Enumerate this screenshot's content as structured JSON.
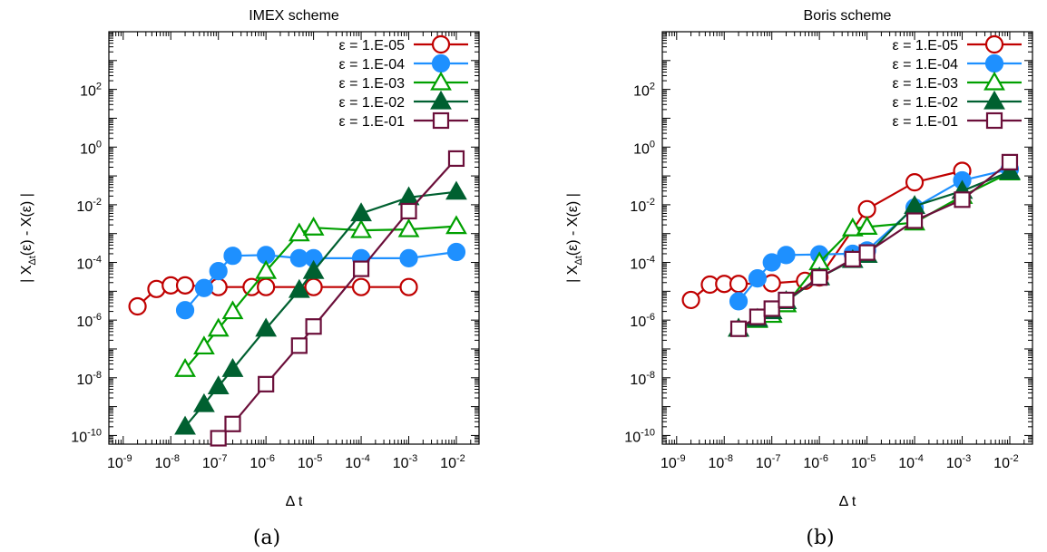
{
  "chart_data": [
    {
      "type": "line",
      "title": "IMEX scheme",
      "caption": "(a)",
      "xlabel": "Δ t",
      "ylabel": "| X",
      "ylabel_sub": "Δt",
      "ylabel_rest": "(ε) - X(ε) |",
      "x_scale": "log",
      "y_scale": "log",
      "xlim": [
        5e-10,
        0.03
      ],
      "ylim": [
        5e-11,
        10000.0
      ],
      "x_ticks": [
        {
          "value": 1e-09,
          "base": "10",
          "exp": "-9"
        },
        {
          "value": 1e-08,
          "base": "10",
          "exp": "-8"
        },
        {
          "value": 1e-07,
          "base": "10",
          "exp": "-7"
        },
        {
          "value": 1e-06,
          "base": "10",
          "exp": "-6"
        },
        {
          "value": 1e-05,
          "base": "10",
          "exp": "-5"
        },
        {
          "value": 0.0001,
          "base": "10",
          "exp": "-4"
        },
        {
          "value": 0.001,
          "base": "10",
          "exp": "-3"
        },
        {
          "value": 0.01,
          "base": "10",
          "exp": "-2"
        }
      ],
      "y_ticks": [
        {
          "value": 1e-10,
          "base": "10",
          "exp": "-10"
        },
        {
          "value": 1e-08,
          "base": "10",
          "exp": "-8"
        },
        {
          "value": 1e-06,
          "base": "10",
          "exp": "-6"
        },
        {
          "value": 0.0001,
          "base": "10",
          "exp": "-4"
        },
        {
          "value": 0.01,
          "base": "10",
          "exp": "-2"
        },
        {
          "value": 1,
          "base": "10",
          "exp": "0"
        },
        {
          "value": 100,
          "base": "10",
          "exp": "2"
        }
      ],
      "legend_position": "top-right",
      "series": [
        {
          "name": "ε = 1.E-05",
          "color": "#c00000",
          "marker": "circle-open",
          "x": [
            2e-09,
            5e-09,
            1e-08,
            2e-08,
            1e-07,
            5e-07,
            1e-06,
            1e-05,
            0.0001,
            0.001
          ],
          "y": [
            3e-06,
            1.2e-05,
            1.6e-05,
            1.6e-05,
            1.4e-05,
            1.4e-05,
            1.4e-05,
            1.4e-05,
            1.4e-05,
            1.4e-05
          ]
        },
        {
          "name": "ε = 1.E-04",
          "color": "#1e90ff",
          "marker": "circle-filled",
          "x": [
            2e-08,
            5e-08,
            1e-07,
            2e-07,
            1e-06,
            5e-06,
            1e-05,
            0.0001,
            0.001,
            0.01
          ],
          "y": [
            2.2e-06,
            1.3e-05,
            5e-05,
            0.00017,
            0.00018,
            0.00014,
            0.00014,
            0.00014,
            0.00014,
            0.00023
          ]
        },
        {
          "name": "ε = 1.E-03",
          "color": "#00a000",
          "marker": "triangle-open",
          "x": [
            2e-08,
            5e-08,
            1e-07,
            2e-07,
            1e-06,
            5e-06,
            1e-05,
            0.0001,
            0.001,
            0.01
          ],
          "y": [
            2e-08,
            1.2e-07,
            5e-07,
            2e-06,
            5e-05,
            0.001,
            0.0016,
            0.0013,
            0.0014,
            0.0018
          ]
        },
        {
          "name": "ε = 1.E-02",
          "color": "#006030",
          "marker": "triangle-filled",
          "x": [
            2e-08,
            5e-08,
            1e-07,
            2e-07,
            1e-06,
            5e-06,
            1e-05,
            0.0001,
            0.001,
            0.01
          ],
          "y": [
            2e-10,
            1.2e-09,
            5e-09,
            2e-08,
            5e-07,
            1.1e-05,
            5e-05,
            0.005,
            0.018,
            0.028
          ]
        },
        {
          "name": "ε = 1.E-01",
          "color": "#6b0f3a",
          "marker": "square-open",
          "x": [
            1e-07,
            2e-07,
            1e-06,
            5e-06,
            1e-05,
            0.0001,
            0.001,
            0.01
          ],
          "y": [
            8e-11,
            2.5e-10,
            6e-09,
            1.3e-07,
            6e-07,
            6e-05,
            0.006,
            0.4
          ]
        }
      ]
    },
    {
      "type": "line",
      "title": "Boris scheme",
      "caption": "(b)",
      "xlabel": "Δ t",
      "ylabel": "| X",
      "ylabel_sub": "Δt",
      "ylabel_rest": "(ε) - X(ε) |",
      "x_scale": "log",
      "y_scale": "log",
      "xlim": [
        5e-10,
        0.03
      ],
      "ylim": [
        5e-11,
        10000.0
      ],
      "x_ticks": [
        {
          "value": 1e-09,
          "base": "10",
          "exp": "-9"
        },
        {
          "value": 1e-08,
          "base": "10",
          "exp": "-8"
        },
        {
          "value": 1e-07,
          "base": "10",
          "exp": "-7"
        },
        {
          "value": 1e-06,
          "base": "10",
          "exp": "-6"
        },
        {
          "value": 1e-05,
          "base": "10",
          "exp": "-5"
        },
        {
          "value": 0.0001,
          "base": "10",
          "exp": "-4"
        },
        {
          "value": 0.001,
          "base": "10",
          "exp": "-3"
        },
        {
          "value": 0.01,
          "base": "10",
          "exp": "-2"
        }
      ],
      "y_ticks": [
        {
          "value": 1e-10,
          "base": "10",
          "exp": "-10"
        },
        {
          "value": 1e-08,
          "base": "10",
          "exp": "-8"
        },
        {
          "value": 1e-06,
          "base": "10",
          "exp": "-6"
        },
        {
          "value": 0.0001,
          "base": "10",
          "exp": "-4"
        },
        {
          "value": 0.01,
          "base": "10",
          "exp": "-2"
        },
        {
          "value": 1,
          "base": "10",
          "exp": "0"
        },
        {
          "value": 100,
          "base": "10",
          "exp": "2"
        }
      ],
      "legend_position": "top-right",
      "series": [
        {
          "name": "ε = 1.E-05",
          "color": "#c00000",
          "marker": "circle-open",
          "x": [
            2e-09,
            5e-09,
            1e-08,
            2e-08,
            1e-07,
            5e-07,
            1e-06,
            1e-05,
            0.0001,
            0.001
          ],
          "y": [
            5e-06,
            1.7e-05,
            1.8e-05,
            1.8e-05,
            1.9e-05,
            2.3e-05,
            3e-05,
            0.007,
            0.06,
            0.15
          ]
        },
        {
          "name": "ε = 1.E-04",
          "color": "#1e90ff",
          "marker": "circle-filled",
          "x": [
            2e-08,
            5e-08,
            1e-07,
            2e-07,
            1e-06,
            5e-06,
            1e-05,
            0.0001,
            0.001,
            0.01
          ],
          "y": [
            4.5e-06,
            2.8e-05,
            0.0001,
            0.00018,
            0.00019,
            0.0002,
            0.00026,
            0.008,
            0.07,
            0.17
          ]
        },
        {
          "name": "ε = 1.E-03",
          "color": "#00a000",
          "marker": "triangle-open",
          "x": [
            2e-08,
            5e-08,
            1e-07,
            2e-07,
            1e-06,
            5e-06,
            1e-05,
            0.0001,
            0.001,
            0.01
          ],
          "y": [
            5e-07,
            1e-06,
            1.5e-06,
            3.5e-06,
            0.0001,
            0.0015,
            0.0017,
            0.0024,
            0.02,
            0.13
          ]
        },
        {
          "name": "ε = 1.E-02",
          "color": "#006030",
          "marker": "triangle-filled",
          "x": [
            2e-08,
            5e-08,
            1e-07,
            2e-07,
            1e-06,
            5e-06,
            1e-05,
            0.0001,
            0.001,
            0.01
          ],
          "y": [
            5e-07,
            1.1e-06,
            2e-06,
            4.5e-06,
            3e-05,
            0.00012,
            0.00018,
            0.009,
            0.03,
            0.14
          ]
        },
        {
          "name": "ε = 1.E-01",
          "color": "#6b0f3a",
          "marker": "square-open",
          "x": [
            2e-08,
            5e-08,
            1e-07,
            2e-07,
            1e-06,
            5e-06,
            1e-05,
            0.0001,
            0.001,
            0.01
          ],
          "y": [
            5e-07,
            1.3e-06,
            2.5e-06,
            5e-06,
            3e-05,
            0.00013,
            0.00022,
            0.0028,
            0.015,
            0.3
          ]
        }
      ]
    }
  ]
}
